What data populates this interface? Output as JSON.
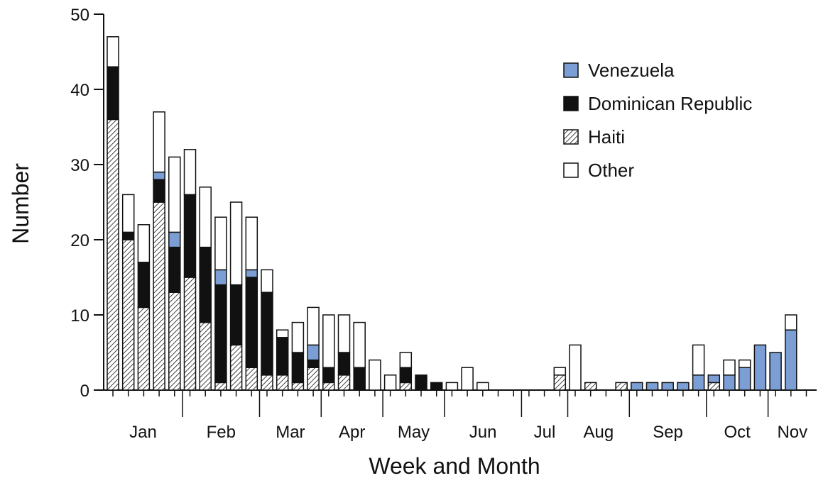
{
  "chart_data": {
    "type": "bar",
    "stacked": true,
    "xlabel": "Week and Month",
    "ylabel": "Number",
    "ylim": [
      0,
      50
    ],
    "yticks": [
      0,
      10,
      20,
      30,
      40,
      50
    ],
    "months": [
      "Jan",
      "Feb",
      "Mar",
      "Apr",
      "May",
      "Jun",
      "Jul",
      "Aug",
      "Sep",
      "Oct",
      "Nov"
    ],
    "legend_position": "top-right",
    "legend": [
      {
        "key": "venezuela",
        "label": "Venezuela",
        "color": "#7b9fd4"
      },
      {
        "key": "dominican",
        "label": "Dominican Republic",
        "color": "#111111"
      },
      {
        "key": "haiti",
        "label": "Haiti",
        "color": "hatch"
      },
      {
        "key": "other",
        "label": "Other",
        "color": "#ffffff"
      }
    ],
    "series": [
      {
        "name": "Haiti",
        "key": "haiti",
        "values": [
          36,
          20,
          11,
          25,
          13,
          15,
          9,
          1,
          6,
          3,
          2,
          2,
          1,
          3,
          1,
          2,
          0,
          0,
          0,
          1,
          0,
          0,
          0,
          0,
          0,
          0,
          0,
          0,
          0,
          2,
          0,
          1,
          0,
          1,
          0,
          0,
          0,
          0,
          0,
          1,
          0,
          0,
          0,
          0,
          0,
          0
        ]
      },
      {
        "name": "Dominican Republic",
        "key": "dominican",
        "values": [
          7,
          1,
          6,
          3,
          6,
          11,
          10,
          13,
          8,
          12,
          11,
          5,
          4,
          1,
          2,
          3,
          3,
          0,
          0,
          2,
          2,
          1,
          0,
          0,
          0,
          0,
          0,
          0,
          0,
          0,
          0,
          0,
          0,
          0,
          0,
          0,
          0,
          0,
          0,
          0,
          0,
          0,
          0,
          0,
          0,
          0
        ]
      },
      {
        "name": "Venezuela",
        "key": "venezuela",
        "values": [
          0,
          0,
          0,
          1,
          2,
          0,
          0,
          2,
          0,
          1,
          0,
          0,
          0,
          2,
          0,
          0,
          0,
          0,
          0,
          0,
          0,
          0,
          0,
          0,
          0,
          0,
          0,
          0,
          0,
          0,
          0,
          0,
          0,
          0,
          1,
          1,
          1,
          1,
          2,
          1,
          2,
          3,
          6,
          5,
          8,
          0
        ]
      },
      {
        "name": "Other",
        "key": "other",
        "values": [
          4,
          5,
          5,
          8,
          10,
          6,
          8,
          7,
          11,
          7,
          3,
          1,
          4,
          5,
          7,
          5,
          6,
          4,
          2,
          2,
          0,
          0,
          1,
          3,
          1,
          0,
          0,
          0,
          0,
          1,
          6,
          0,
          0,
          0,
          0,
          0,
          0,
          0,
          4,
          0,
          2,
          1,
          0,
          0,
          2,
          0
        ]
      }
    ]
  }
}
